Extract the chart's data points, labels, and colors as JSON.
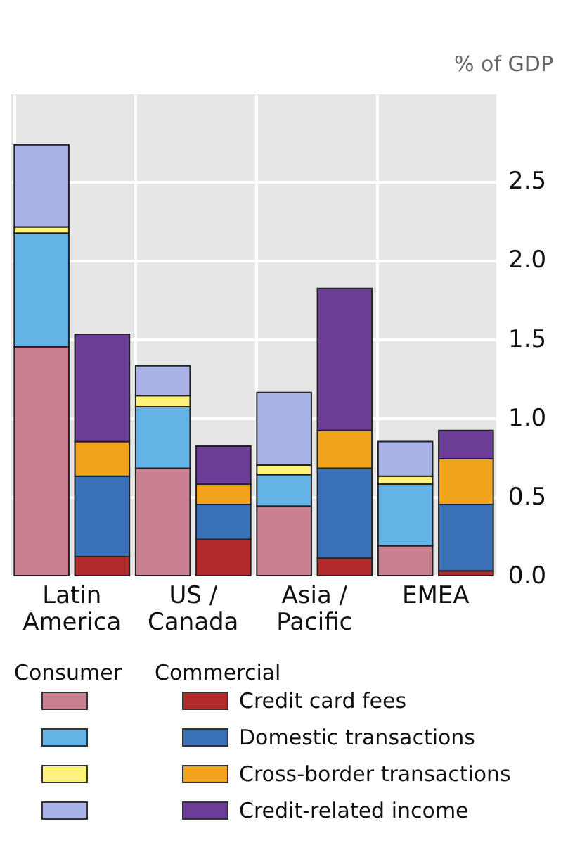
{
  "chart_data": {
    "type": "bar",
    "stacked": true,
    "ylabel": "% of GDP",
    "categories": [
      "Latin America",
      null,
      "US / Canada",
      null,
      "Asia / Pacific",
      null,
      "EMEA",
      null
    ],
    "series": [
      {
        "color": "#c98090",
        "values": [
          1.45,
          null,
          0.68,
          null,
          0.44,
          null,
          0.19,
          null
        ]
      },
      {
        "color": "#63b3e6",
        "values": [
          0.72,
          null,
          0.39,
          null,
          0.2,
          null,
          0.39,
          null
        ]
      },
      {
        "color": "#fff27a",
        "values": [
          0.04,
          null,
          0.07,
          null,
          0.06,
          null,
          0.05,
          null
        ]
      },
      {
        "color": "#a9b3e8",
        "values": [
          0.52,
          null,
          0.19,
          null,
          0.46,
          null,
          0.22,
          null
        ]
      },
      {
        "name": "Credit card fees",
        "color": "#b22a2a",
        "values": [
          null,
          0.12,
          null,
          0.23,
          null,
          0.11,
          null,
          0.03
        ]
      },
      {
        "name": "Domestic transactions",
        "color": "#3a70b5",
        "values": [
          null,
          0.51,
          null,
          0.22,
          null,
          0.57,
          null,
          0.42
        ]
      },
      {
        "name": "Cross-border transactions",
        "color": "#f2a31c",
        "values": [
          null,
          0.22,
          null,
          0.13,
          null,
          0.24,
          null,
          0.29
        ]
      },
      {
        "name": "Credit-related income",
        "color": "#6b3d97",
        "values": [
          null,
          0.68,
          null,
          0.24,
          null,
          0.9,
          null,
          0.18
        ]
      }
    ],
    "annotations": [
      "Consumer",
      "Commercial"
    ],
    "ylim": [
      0,
      3.05
    ],
    "yticks": [
      {
        "value": 0,
        "label": "0.0"
      },
      0.5,
      {
        "value": 1,
        "label": "1.0"
      },
      1.5,
      {
        "value": 2,
        "label": "2.0"
      },
      2.5
    ],
    "grid": true,
    "legend": "bottom"
  }
}
